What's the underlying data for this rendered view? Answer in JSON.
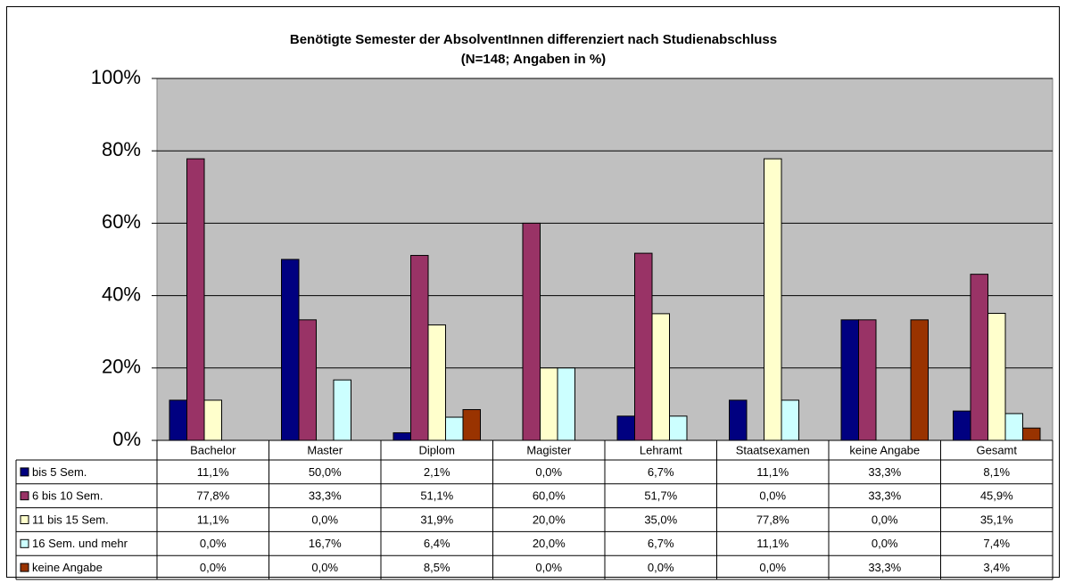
{
  "chart_data": {
    "type": "bar",
    "title": "Benötigte Semester der AbsolventInnen differenziert nach Studienabschluss",
    "subtitle": "(N=148; Angaben in %)",
    "categories": [
      "Bachelor",
      "Master",
      "Diplom",
      "Magister",
      "Lehramt",
      "Staatsexamen",
      "keine Angabe",
      "Gesamt"
    ],
    "series": [
      {
        "name": "bis 5 Sem.",
        "color": "#000080",
        "values": [
          11.1,
          50.0,
          2.1,
          0.0,
          6.7,
          11.1,
          33.3,
          8.1
        ],
        "value_labels": [
          "11,1%",
          "50,0%",
          "2,1%",
          "0,0%",
          "6,7%",
          "11,1%",
          "33,3%",
          "8,1%"
        ]
      },
      {
        "name": "6 bis 10 Sem.",
        "color": "#993366",
        "values": [
          77.8,
          33.3,
          51.1,
          60.0,
          51.7,
          0.0,
          33.3,
          45.9
        ],
        "value_labels": [
          "77,8%",
          "33,3%",
          "51,1%",
          "60,0%",
          "51,7%",
          "0,0%",
          "33,3%",
          "45,9%"
        ]
      },
      {
        "name": "11 bis 15 Sem.",
        "color": "#ffffcc",
        "values": [
          11.1,
          0.0,
          31.9,
          20.0,
          35.0,
          77.8,
          0.0,
          35.1
        ],
        "value_labels": [
          "11,1%",
          "0,0%",
          "31,9%",
          "20,0%",
          "35,0%",
          "77,8%",
          "0,0%",
          "35,1%"
        ]
      },
      {
        "name": "16 Sem. und mehr",
        "color": "#ccffff",
        "values": [
          0.0,
          16.7,
          6.4,
          20.0,
          6.7,
          11.1,
          0.0,
          7.4
        ],
        "value_labels": [
          "0,0%",
          "16,7%",
          "6,4%",
          "20,0%",
          "6,7%",
          "11,1%",
          "0,0%",
          "7,4%"
        ]
      },
      {
        "name": "keine Angabe",
        "color": "#993300",
        "values": [
          0.0,
          0.0,
          8.5,
          0.0,
          0.0,
          0.0,
          33.3,
          3.4
        ],
        "value_labels": [
          "0,0%",
          "0,0%",
          "8,5%",
          "0,0%",
          "0,0%",
          "0,0%",
          "33,3%",
          "3,4%"
        ]
      }
    ],
    "ylim": [
      0,
      100
    ],
    "yticks": [
      {
        "value": 0,
        "label": "0%"
      },
      {
        "value": 20,
        "label": "20%"
      },
      {
        "value": 40,
        "label": "40%"
      },
      {
        "value": 60,
        "label": "60%"
      },
      {
        "value": 80,
        "label": "80%"
      },
      {
        "value": 100,
        "label": "100%"
      }
    ],
    "grid": true,
    "plot_background": "#c0c0c0"
  }
}
